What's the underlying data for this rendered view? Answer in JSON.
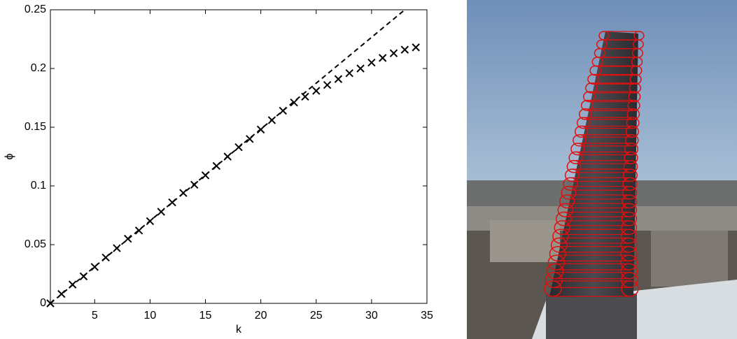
{
  "chart_data": {
    "type": "scatter",
    "x_label": "k",
    "y_label": "ϕ",
    "xlim": [
      1,
      35
    ],
    "xticks": [
      5,
      10,
      15,
      20,
      25,
      30,
      35
    ],
    "ylim": [
      0,
      0.25
    ],
    "yticks": [
      0,
      0.05,
      0.1,
      0.15,
      0.2,
      0.25
    ],
    "series": [
      {
        "color": "#000000",
        "marker": "x",
        "x": [
          1,
          2,
          3,
          4,
          5,
          6,
          7,
          8,
          9,
          10,
          11,
          12,
          13,
          14,
          15,
          16,
          17,
          18,
          19,
          20,
          21,
          22,
          23,
          24,
          25,
          26,
          27,
          28,
          29,
          30,
          31,
          32,
          33,
          34
        ],
        "values": [
          0,
          0.008,
          0.016,
          0.023,
          0.031,
          0.039,
          0.047,
          0.055,
          0.062,
          0.07,
          0.078,
          0.086,
          0.094,
          0.101,
          0.109,
          0.117,
          0.125,
          0.133,
          0.14,
          0.148,
          0.156,
          0.164,
          0.171,
          0.176,
          0.181,
          0.186,
          0.191,
          0.196,
          0.2,
          0.205,
          0.209,
          0.213,
          0.216,
          0.218
        ]
      },
      {
        "color": "#000000",
        "line_style": "dashed",
        "x": [
          1,
          33
        ],
        "values": [
          0,
          0.25
        ]
      }
    ]
  }
}
